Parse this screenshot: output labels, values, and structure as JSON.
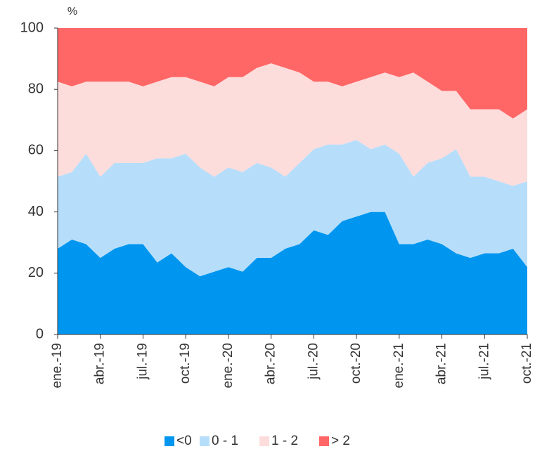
{
  "chart_data": {
    "type": "stacked-area",
    "y_label": "%",
    "categories": [
      "ene.-19",
      null,
      null,
      "abr.-19",
      null,
      null,
      "jul.-19",
      null,
      null,
      "oct.-19",
      null,
      null,
      "ene.-20",
      null,
      null,
      "abr.-20",
      null,
      null,
      "jul.-20",
      null,
      null,
      "oct.-20",
      null,
      null,
      "ene.-21",
      null,
      null,
      "abr.-21",
      null,
      null,
      "jul.-21",
      null,
      null,
      "oct.-21"
    ],
    "series": [
      {
        "name": "<0",
        "color": "#0096f0",
        "values": [
          28,
          31,
          29.5,
          25,
          28,
          29.5,
          29.5,
          23.5,
          26.5,
          22,
          19,
          20.5,
          22,
          20.5,
          25,
          25,
          28,
          29.5,
          34,
          32.5,
          37,
          38.5,
          40,
          40,
          29.5,
          29.5,
          31,
          29.5,
          26.5,
          25,
          26.5,
          26.5,
          28,
          22
        ]
      },
      {
        "name": "0 - 1",
        "color": "#b6defa",
        "values": [
          23.5,
          22,
          29.5,
          26.5,
          28,
          26.5,
          26.5,
          34,
          31,
          37,
          35.5,
          31,
          32.5,
          32.5,
          31,
          29.5,
          23.5,
          26.5,
          26.5,
          29.5,
          25,
          25,
          20.5,
          22,
          29.5,
          22,
          25,
          28,
          34,
          26.5,
          25,
          23.5,
          20.5,
          28
        ]
      },
      {
        "name": "1 - 2",
        "color": "#fddcdc",
        "values": [
          31,
          28,
          23.5,
          31,
          26.5,
          26.5,
          25,
          25,
          26.5,
          25,
          28,
          29.5,
          29.5,
          31,
          31,
          34,
          35.5,
          29.5,
          22,
          20.5,
          19,
          19,
          23.5,
          23.5,
          25,
          34,
          26.5,
          22,
          19,
          22,
          22,
          23.5,
          22,
          23.5
        ]
      },
      {
        "name": "> 2",
        "color": "#ff6666",
        "values": [
          17.5,
          19,
          17.5,
          17.5,
          17.5,
          17.5,
          19,
          17.5,
          16,
          16,
          17.5,
          19,
          16,
          16,
          13,
          11.5,
          13,
          14.5,
          17.5,
          17.5,
          19,
          17.5,
          16,
          14.5,
          16,
          14.5,
          17.5,
          20.5,
          20.5,
          26.5,
          26.5,
          26.5,
          29.5,
          26.5
        ]
      }
    ],
    "ylim": [
      0,
      100
    ],
    "yticks": [
      0,
      20,
      40,
      60,
      80,
      100
    ],
    "legend": "bottom"
  }
}
